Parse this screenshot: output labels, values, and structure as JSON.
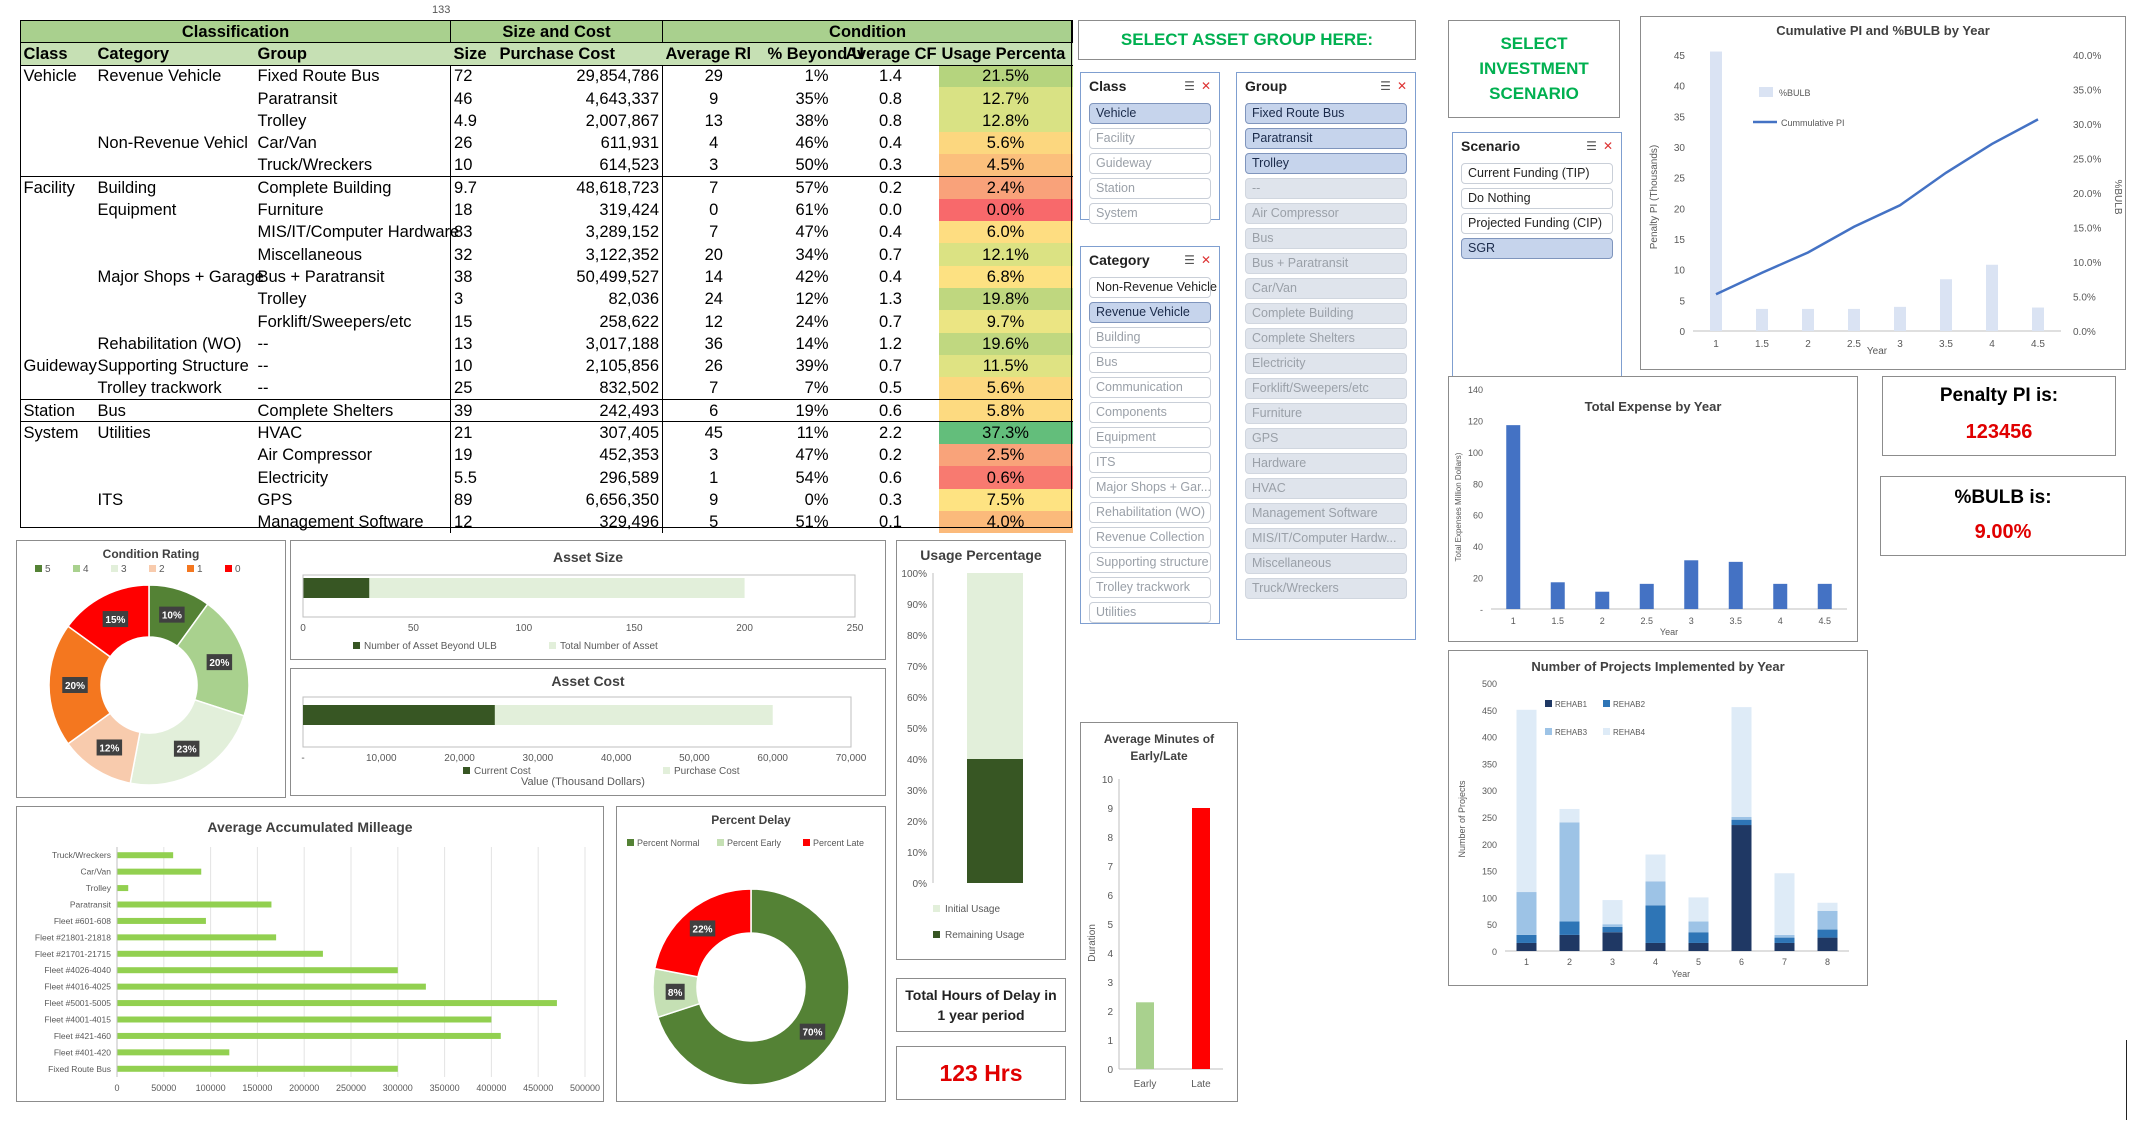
{
  "stray_label": "133",
  "table": {
    "group_headers": [
      "Classification",
      "Size and Cost",
      "Condition"
    ],
    "columns": [
      "Class",
      "Category",
      "Group",
      "Size",
      "Purchase Cost",
      "Average Rl",
      "% Beyond U",
      "Average CF",
      "Usage Percenta"
    ],
    "rows": [
      {
        "cls": "Vehicle",
        "cat": "Revenue Vehicle",
        "grp": "Fixed Route Bus",
        "size": "72",
        "cost": "29,854,786",
        "rl": "29",
        "beyond": "1%",
        "cf": "1.4",
        "usage": "21.5%",
        "color": "#b5d47e",
        "sep": false
      },
      {
        "cls": "",
        "cat": "",
        "grp": "Paratransit",
        "size": "46",
        "cost": "4,643,337",
        "rl": "9",
        "beyond": "35%",
        "cf": "0.8",
        "usage": "12.7%",
        "color": "#d9e284",
        "sep": false
      },
      {
        "cls": "",
        "cat": "",
        "grp": "Trolley",
        "size": "4.9",
        "cost": "2,007,867",
        "rl": "13",
        "beyond": "38%",
        "cf": "0.8",
        "usage": "12.8%",
        "color": "#d9e284",
        "sep": false
      },
      {
        "cls": "",
        "cat": "Non-Revenue Vehicl",
        "grp": "Car/Van",
        "size": "26",
        "cost": "611,931",
        "rl": "4",
        "beyond": "46%",
        "cf": "0.4",
        "usage": "5.6%",
        "color": "#fcd77f",
        "sep": false
      },
      {
        "cls": "",
        "cat": "",
        "grp": "Truck/Wreckers",
        "size": "10",
        "cost": "614,523",
        "rl": "3",
        "beyond": "50%",
        "cf": "0.3",
        "usage": "4.5%",
        "color": "#fbbf7c",
        "sep": false
      },
      {
        "cls": "Facility",
        "cat": "Building",
        "grp": "Complete Building",
        "size": "9.7",
        "cost": "48,618,723",
        "rl": "7",
        "beyond": "57%",
        "cf": "0.2",
        "usage": "2.4%",
        "color": "#f9a27a",
        "sep": true
      },
      {
        "cls": "",
        "cat": "Equipment",
        "grp": "Furniture",
        "size": "18",
        "cost": "319,424",
        "rl": "0",
        "beyond": "61%",
        "cf": "0.0",
        "usage": "0.0%",
        "color": "#f8696b",
        "sep": false
      },
      {
        "cls": "",
        "cat": "",
        "grp": "MIS/IT/Computer Hardware",
        "size": "83",
        "cost": "3,289,152",
        "rl": "7",
        "beyond": "47%",
        "cf": "0.4",
        "usage": "6.0%",
        "color": "#fedd81",
        "sep": false
      },
      {
        "cls": "",
        "cat": "",
        "grp": "Miscellaneous",
        "size": "32",
        "cost": "3,122,352",
        "rl": "20",
        "beyond": "34%",
        "cf": "0.7",
        "usage": "12.1%",
        "color": "#dbe283",
        "sep": false
      },
      {
        "cls": "",
        "cat": "Major Shops + Garage",
        "grp": "Bus + Paratransit",
        "size": "38",
        "cost": "50,499,527",
        "rl": "14",
        "beyond": "42%",
        "cf": "0.4",
        "usage": "6.8%",
        "color": "#fde182",
        "sep": false
      },
      {
        "cls": "",
        "cat": "",
        "grp": "Trolley",
        "size": "3",
        "cost": "82,036",
        "rl": "24",
        "beyond": "12%",
        "cf": "1.3",
        "usage": "19.8%",
        "color": "#bfd77f",
        "sep": false
      },
      {
        "cls": "",
        "cat": "",
        "grp": "Forklift/Sweepers/etc",
        "size": "15",
        "cost": "258,622",
        "rl": "12",
        "beyond": "24%",
        "cf": "0.7",
        "usage": "9.7%",
        "color": "#ebe583",
        "sep": false
      },
      {
        "cls": "",
        "cat": "Rehabilitation (WO)",
        "grp": "--",
        "size": "13",
        "cost": "3,017,188",
        "rl": "36",
        "beyond": "14%",
        "cf": "1.2",
        "usage": "19.6%",
        "color": "#c0d880",
        "sep": false
      },
      {
        "cls": "Guideway",
        "cat": "Supporting Structure",
        "grp": "--",
        "size": "10",
        "cost": "2,105,856",
        "rl": "26",
        "beyond": "39%",
        "cf": "0.7",
        "usage": "11.5%",
        "color": "#dfe383",
        "sep": false
      },
      {
        "cls": "",
        "cat": "Trolley trackwork",
        "grp": "--",
        "size": "25",
        "cost": "832,502",
        "rl": "7",
        "beyond": "7%",
        "cf": "0.5",
        "usage": "5.6%",
        "color": "#fcd77f",
        "sep": false
      },
      {
        "cls": "Station",
        "cat": "Bus",
        "grp": "Complete Shelters",
        "size": "39",
        "cost": "242,493",
        "rl": "6",
        "beyond": "19%",
        "cf": "0.6",
        "usage": "5.8%",
        "color": "#fdda80",
        "sep": true
      },
      {
        "cls": "System",
        "cat": "Utilities",
        "grp": "HVAC",
        "size": "21",
        "cost": "307,405",
        "rl": "45",
        "beyond": "11%",
        "cf": "2.2",
        "usage": "37.3%",
        "color": "#63be7b",
        "sep": true
      },
      {
        "cls": "",
        "cat": "",
        "grp": "Air Compressor",
        "size": "19",
        "cost": "452,353",
        "rl": "3",
        "beyond": "47%",
        "cf": "0.2",
        "usage": "2.5%",
        "color": "#f9a37a",
        "sep": false
      },
      {
        "cls": "",
        "cat": "",
        "grp": "Electricity",
        "size": "5.5",
        "cost": "296,589",
        "rl": "1",
        "beyond": "54%",
        "cf": "0.6",
        "usage": "0.6%",
        "color": "#f87a70",
        "sep": false
      },
      {
        "cls": "",
        "cat": "ITS",
        "grp": "GPS",
        "size": "89",
        "cost": "6,656,350",
        "rl": "9",
        "beyond": "0%",
        "cf": "0.3",
        "usage": "7.5%",
        "color": "#fee382",
        "sep": false
      },
      {
        "cls": "",
        "cat": "",
        "grp": "Management Software",
        "size": "12",
        "cost": "329,496",
        "rl": "5",
        "beyond": "51%",
        "cf": "0.1",
        "usage": "4.0%",
        "color": "#fbba7b",
        "sep": false
      }
    ]
  },
  "asset_group_banner": "SELECT ASSET GROUP HERE:",
  "investment_banner": "SELECT INVESTMENT SCENARIO",
  "slicers": {
    "class": {
      "title": "Class",
      "items": [
        {
          "label": "Vehicle",
          "state": "sel"
        },
        {
          "label": "Facility",
          "state": "off"
        },
        {
          "label": "Guideway",
          "state": "off"
        },
        {
          "label": "Station",
          "state": "off"
        },
        {
          "label": "System",
          "state": "off"
        }
      ]
    },
    "category": {
      "title": "Category",
      "items": [
        {
          "label": "Non-Revenue Vehicle",
          "state": "avail"
        },
        {
          "label": "Revenue Vehicle",
          "state": "sel"
        },
        {
          "label": "Building",
          "state": "off"
        },
        {
          "label": "Bus",
          "state": "off"
        },
        {
          "label": "Communication",
          "state": "off"
        },
        {
          "label": "Components",
          "state": "off"
        },
        {
          "label": "Equipment",
          "state": "off"
        },
        {
          "label": "ITS",
          "state": "off"
        },
        {
          "label": "Major Shops + Gar...",
          "state": "off"
        },
        {
          "label": "Rehabilitation (WO)",
          "state": "off"
        },
        {
          "label": "Revenue Collection",
          "state": "off"
        },
        {
          "label": "Supporting structure",
          "state": "off"
        },
        {
          "label": "Trolley trackwork",
          "state": "off"
        },
        {
          "label": "Utilities",
          "state": "off"
        }
      ]
    },
    "group": {
      "title": "Group",
      "items": [
        {
          "label": "Fixed Route Bus",
          "state": "sel"
        },
        {
          "label": "Paratransit",
          "state": "sel"
        },
        {
          "label": "Trolley",
          "state": "sel"
        },
        {
          "label": "--",
          "state": "nodata"
        },
        {
          "label": "Air Compressor",
          "state": "nodata"
        },
        {
          "label": "Bus",
          "state": "nodata"
        },
        {
          "label": "Bus + Paratransit",
          "state": "nodata"
        },
        {
          "label": "Car/Van",
          "state": "nodata"
        },
        {
          "label": "Complete Building",
          "state": "nodata"
        },
        {
          "label": "Complete Shelters",
          "state": "nodata"
        },
        {
          "label": "Electricity",
          "state": "nodata"
        },
        {
          "label": "Forklift/Sweepers/etc",
          "state": "nodata"
        },
        {
          "label": "Furniture",
          "state": "nodata"
        },
        {
          "label": "GPS",
          "state": "nodata"
        },
        {
          "label": "Hardware",
          "state": "nodata"
        },
        {
          "label": "HVAC",
          "state": "nodata"
        },
        {
          "label": "Management Software",
          "state": "nodata"
        },
        {
          "label": "MIS/IT/Computer Hardw...",
          "state": "nodata"
        },
        {
          "label": "Miscellaneous",
          "state": "nodata"
        },
        {
          "label": "Truck/Wreckers",
          "state": "nodata"
        }
      ]
    },
    "scenario": {
      "title": "Scenario",
      "items": [
        {
          "label": "Current Funding (TIP)",
          "state": "avail"
        },
        {
          "label": "Do Nothing",
          "state": "avail"
        },
        {
          "label": "Projected Funding (CIP)",
          "state": "avail"
        },
        {
          "label": "SGR",
          "state": "sel"
        }
      ]
    }
  },
  "kpis": {
    "penalty_title": "Penalty PI is:",
    "penalty_value": "123456",
    "bulb_title": "%BULB is:",
    "bulb_value": "9.00%",
    "delay_title": "Total Hours of Delay in 1 year period",
    "delay_value": "123 Hrs"
  },
  "colors": {
    "dark_green": "#375623",
    "light_green": "#e2efda",
    "mid_green": "#70ad47",
    "red": "#ff0000",
    "blue": "#4472c4",
    "light_blue": "#dae3f3"
  },
  "chart_data": [
    {
      "id": "condition_rating",
      "type": "pie",
      "title": "Condition Rating",
      "legend": [
        "5",
        "4",
        "3",
        "2",
        "1",
        "0"
      ],
      "colors": [
        "#548235",
        "#a9d18e",
        "#e2efda",
        "#f8cbad",
        "#f4771f",
        "#ff0000"
      ],
      "values": [
        10,
        20,
        23,
        12,
        20,
        15
      ],
      "labels": [
        "10%",
        "20%",
        "23%",
        "12%",
        "20%",
        "15%"
      ]
    },
    {
      "id": "asset_size",
      "type": "bar",
      "title": "Asset Size",
      "series": [
        {
          "name": "Number of Asset Beyond ULB",
          "values": [
            30
          ]
        },
        {
          "name": "Total Number of Asset",
          "values": [
            200
          ]
        }
      ],
      "ticks": [
        "0",
        "50",
        "100",
        "150",
        "200",
        "250"
      ],
      "xlim": [
        0,
        250
      ]
    },
    {
      "id": "asset_cost",
      "type": "bar",
      "title": "Asset Cost",
      "series": [
        {
          "name": "Current Cost",
          "values": [
            24500
          ]
        },
        {
          "name": "Purchase Cost",
          "values": [
            60000
          ]
        }
      ],
      "ticks": [
        "-",
        "10,000",
        "20,000",
        "30,000",
        "40,000",
        "50,000",
        "60,000",
        "70,000"
      ],
      "xlim": [
        0,
        70000
      ],
      "xlabel": "Value (Thousand Dollars)"
    },
    {
      "id": "usage_percentage",
      "type": "bar",
      "title": "Usage Percentage",
      "series": [
        {
          "name": "Initial Usage",
          "values": [
            60
          ]
        },
        {
          "name": "Remaining Usage",
          "values": [
            40
          ]
        }
      ],
      "ticks": [
        "0%",
        "10%",
        "20%",
        "30%",
        "40%",
        "50%",
        "60%",
        "70%",
        "80%",
        "90%",
        "100%"
      ],
      "ylim": [
        0,
        100
      ]
    },
    {
      "id": "avg_minutes",
      "type": "bar",
      "title": "Average Minutes of Early/Late",
      "categories": [
        "Early",
        "Late"
      ],
      "values": [
        2.3,
        9
      ],
      "colors": [
        "#a9d18e",
        "#ff0000"
      ],
      "ylabel": "Duration",
      "ylim": [
        0,
        10
      ],
      "ticks": [
        "0",
        "1",
        "2",
        "3",
        "4",
        "5",
        "6",
        "7",
        "8",
        "9",
        "10"
      ]
    },
    {
      "id": "avg_milleage",
      "type": "bar",
      "title": "Average Accumulated Milleage",
      "categories": [
        "Truck/Wreckers",
        "Car/Van",
        "Trolley",
        "Paratransit",
        "Fleet #601-608",
        "Fleet #21801-21818",
        "Fleet #21701-21715",
        "Fleet #4026-4040",
        "Fleet #4016-4025",
        "Fleet #5001-5005",
        "Fleet #4001-4015",
        "Fleet #421-460",
        "Fleet #401-420",
        "Fixed Route Bus"
      ],
      "values": [
        60000,
        90000,
        12000,
        165000,
        95000,
        170000,
        220000,
        300000,
        330000,
        470000,
        400000,
        410000,
        120000,
        300000
      ],
      "ticks": [
        "0",
        "50000",
        "100000",
        "150000",
        "200000",
        "250000",
        "300000",
        "350000",
        "400000",
        "450000",
        "500000"
      ],
      "xlim": [
        0,
        500000
      ]
    },
    {
      "id": "percent_delay",
      "type": "pie",
      "title": "Percent Delay",
      "legend": [
        "Percent Normal",
        "Percent Early",
        "Percent Late"
      ],
      "colors": [
        "#548235",
        "#c5e0b4",
        "#ff0000"
      ],
      "values": [
        70,
        8,
        22
      ],
      "labels": [
        "70%",
        "8%",
        "22%"
      ]
    },
    {
      "id": "cumulative_pi",
      "type": "line",
      "title": "Cumulative PI and %BULB by Year",
      "x": [
        "1",
        "1.5",
        "2",
        "2.5",
        "3",
        "3.5",
        "4",
        "4.5"
      ],
      "series": [
        {
          "name": "%BULB",
          "type": "bar",
          "values": [
            40.5,
            3.2,
            3.2,
            3.2,
            3.5,
            7.5,
            9.6,
            3.4
          ]
        },
        {
          "name": "Cummulative PI",
          "type": "line",
          "values": [
            6,
            9.5,
            12.8,
            17,
            20.5,
            25.8,
            30.5,
            34.5
          ]
        }
      ],
      "xlabel": "Year",
      "ylabel": "Penalty PI (Thousands)",
      "ylabel2": "%BULB",
      "yticks": [
        "0",
        "5",
        "10",
        "15",
        "20",
        "25",
        "30",
        "35",
        "40",
        "45"
      ],
      "ylim": [
        0,
        45
      ],
      "y2ticks": [
        "0.0%",
        "5.0%",
        "10.0%",
        "15.0%",
        "20.0%",
        "25.0%",
        "30.0%",
        "35.0%",
        "40.0%"
      ]
    },
    {
      "id": "total_expense",
      "type": "bar",
      "title": "Total Expense by Year",
      "categories": [
        "1",
        "1.5",
        "2",
        "2.5",
        "3",
        "3.5",
        "4",
        "4.5"
      ],
      "values": [
        117,
        17,
        11,
        16,
        31,
        30,
        16,
        16
      ],
      "xlabel": "Year",
      "ylabel": "Total Expenses Million Dollars)",
      "ylim": [
        0,
        140
      ],
      "ticks": [
        "-",
        "20",
        "40",
        "60",
        "80",
        "100",
        "120",
        "140"
      ]
    },
    {
      "id": "projects_implemented",
      "type": "bar",
      "title": "Number of Projects Implemented by Year",
      "categories": [
        "1",
        "2",
        "3",
        "4",
        "5",
        "6",
        "7",
        "8"
      ],
      "series": [
        {
          "name": "REHAB1",
          "values": [
            15,
            30,
            35,
            15,
            15,
            235,
            15,
            25
          ]
        },
        {
          "name": "REHAB2",
          "values": [
            15,
            25,
            10,
            70,
            20,
            10,
            10,
            15
          ]
        },
        {
          "name": "REHAB3",
          "values": [
            80,
            185,
            5,
            45,
            20,
            5,
            5,
            35
          ]
        },
        {
          "name": "REHAB4",
          "values": [
            340,
            25,
            45,
            50,
            45,
            205,
            115,
            15
          ]
        }
      ],
      "colors": [
        "#1f3864",
        "#2e75b6",
        "#9dc3e6",
        "#deebf7"
      ],
      "xlabel": "Year",
      "ylabel": "Number of Projects",
      "ylim": [
        0,
        500
      ],
      "ticks": [
        "0",
        "50",
        "100",
        "150",
        "200",
        "250",
        "300",
        "350",
        "400",
        "450",
        "500"
      ]
    }
  ]
}
